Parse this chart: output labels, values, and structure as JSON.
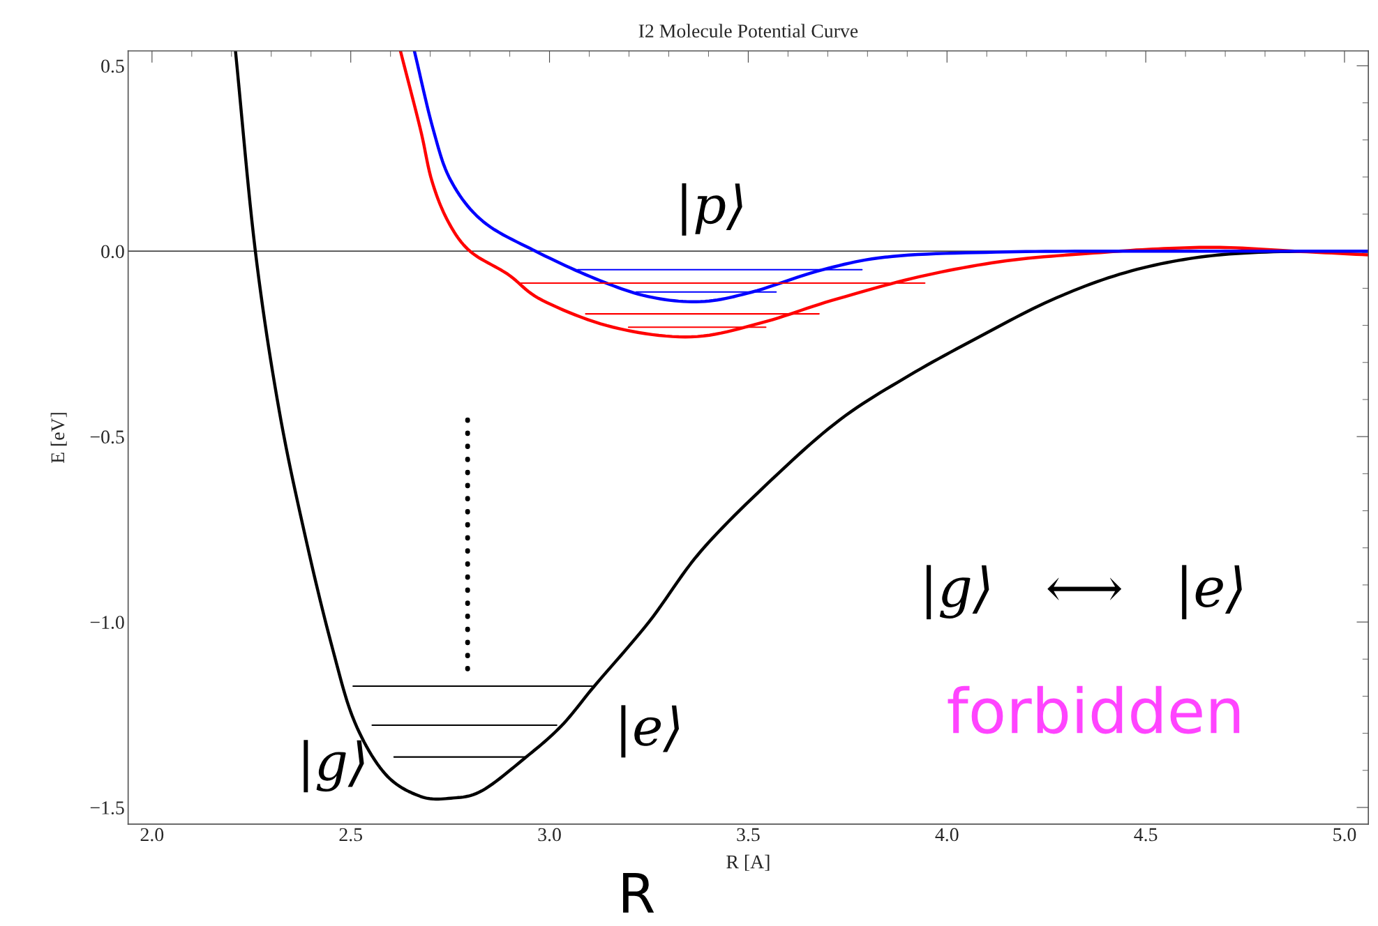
{
  "chart_data": {
    "type": "line",
    "title": "I2 Molecule Potential Curve",
    "xlabel": "R [A]",
    "ylabel": "E [eV]",
    "xlim": [
      1.94,
      5.06
    ],
    "ylim": [
      -1.545,
      0.54
    ],
    "xticks": [
      {
        "value": 2,
        "label": "2.0"
      },
      {
        "value": 2.5,
        "label": "2.5"
      },
      {
        "value": 3,
        "label": "3.0"
      },
      {
        "value": 3.5,
        "label": "3.5"
      },
      {
        "value": 4,
        "label": "4.0"
      },
      {
        "value": 4.5,
        "label": "4.5"
      },
      {
        "value": 5,
        "label": "5.0"
      }
    ],
    "yticks": [
      {
        "value": 0.5,
        "label": "0.5"
      },
      {
        "value": 0,
        "label": "0.0"
      },
      {
        "value": -0.5,
        "label": "−0.5"
      },
      {
        "value": -1,
        "label": "−1.0"
      },
      {
        "value": -1.5,
        "label": "−1.5"
      }
    ],
    "grid": false,
    "legend": false,
    "ref_lines": [
      {
        "axis": "y",
        "value": 0,
        "color": "#000000",
        "line_style": "solid"
      }
    ],
    "series": [
      {
        "color": "#000000",
        "x": [
          2.21,
          2.26,
          2.32,
          2.39,
          2.455,
          2.51,
          2.587,
          2.675,
          2.752,
          2.83,
          2.94,
          3.03,
          3.115,
          3.25,
          3.38,
          3.555,
          3.73,
          3.905,
          4.083,
          4.26,
          4.435,
          4.61,
          4.786,
          5.0,
          5.06
        ],
        "values": [
          0.54,
          0.0,
          -0.43,
          -0.79,
          -1.075,
          -1.27,
          -1.41,
          -1.47,
          -1.475,
          -1.455,
          -1.365,
          -1.28,
          -1.17,
          -1.0,
          -0.81,
          -0.62,
          -0.455,
          -0.335,
          -0.23,
          -0.133,
          -0.062,
          -0.02,
          -0.003,
          0.0,
          0.0
        ]
      },
      {
        "color": "#ff0000",
        "x": [
          2.625,
          2.675,
          2.704,
          2.745,
          2.8,
          2.895,
          2.983,
          3.16,
          3.357,
          3.533,
          3.71,
          3.93,
          4.149,
          4.37,
          4.545,
          4.7,
          4.875,
          5.06
        ],
        "values": [
          0.54,
          0.33,
          0.19,
          0.08,
          0.0,
          -0.062,
          -0.133,
          -0.205,
          -0.231,
          -0.193,
          -0.133,
          -0.069,
          -0.026,
          -0.005,
          0.007,
          0.01,
          0.0,
          -0.01
        ]
      },
      {
        "color": "#0000ff",
        "x": [
          2.66,
          2.707,
          2.752,
          2.833,
          2.965,
          3.115,
          3.247,
          3.38,
          3.51,
          3.687,
          3.863,
          4.149,
          4.48,
          5.06
        ],
        "values": [
          0.54,
          0.33,
          0.19,
          0.08,
          0.0,
          -0.074,
          -0.122,
          -0.136,
          -0.11,
          -0.05,
          -0.014,
          -0.002,
          0.0,
          0.0
        ]
      },
      {
        "color": "#000000",
        "x": [
          2.506,
          3.115
        ],
        "values": [
          -1.173,
          -1.173
        ]
      },
      {
        "color": "#000000",
        "x": [
          2.554,
          3.018
        ],
        "values": [
          -1.278,
          -1.278
        ]
      },
      {
        "color": "#000000",
        "x": [
          2.609,
          2.941
        ],
        "values": [
          -1.364,
          -1.364
        ]
      },
      {
        "color": "#ff0000",
        "x": [
          2.924,
          3.944
        ],
        "values": [
          -0.086,
          -0.086
        ]
      },
      {
        "color": "#ff0000",
        "x": [
          3.091,
          3.678
        ],
        "values": [
          -0.169,
          -0.169
        ]
      },
      {
        "color": "#ff0000",
        "x": [
          3.199,
          3.544
        ],
        "values": [
          -0.205,
          -0.205
        ]
      },
      {
        "color": "#0000ff",
        "x": [
          3.071,
          3.786
        ],
        "values": [
          -0.05,
          -0.05
        ]
      },
      {
        "color": "#0000ff",
        "x": [
          3.218,
          3.57
        ],
        "values": [
          -0.11,
          -0.11
        ]
      },
      {
        "color": "#000000",
        "line_style": "dotted",
        "x": [
          2.794,
          2.794
        ],
        "values": [
          -0.455,
          -1.142
        ]
      }
    ],
    "annotations": [
      "|g⟩",
      "|e⟩",
      "|p⟩",
      "|g⟩   ⟷   |e⟩",
      "forbidden",
      "R"
    ]
  }
}
